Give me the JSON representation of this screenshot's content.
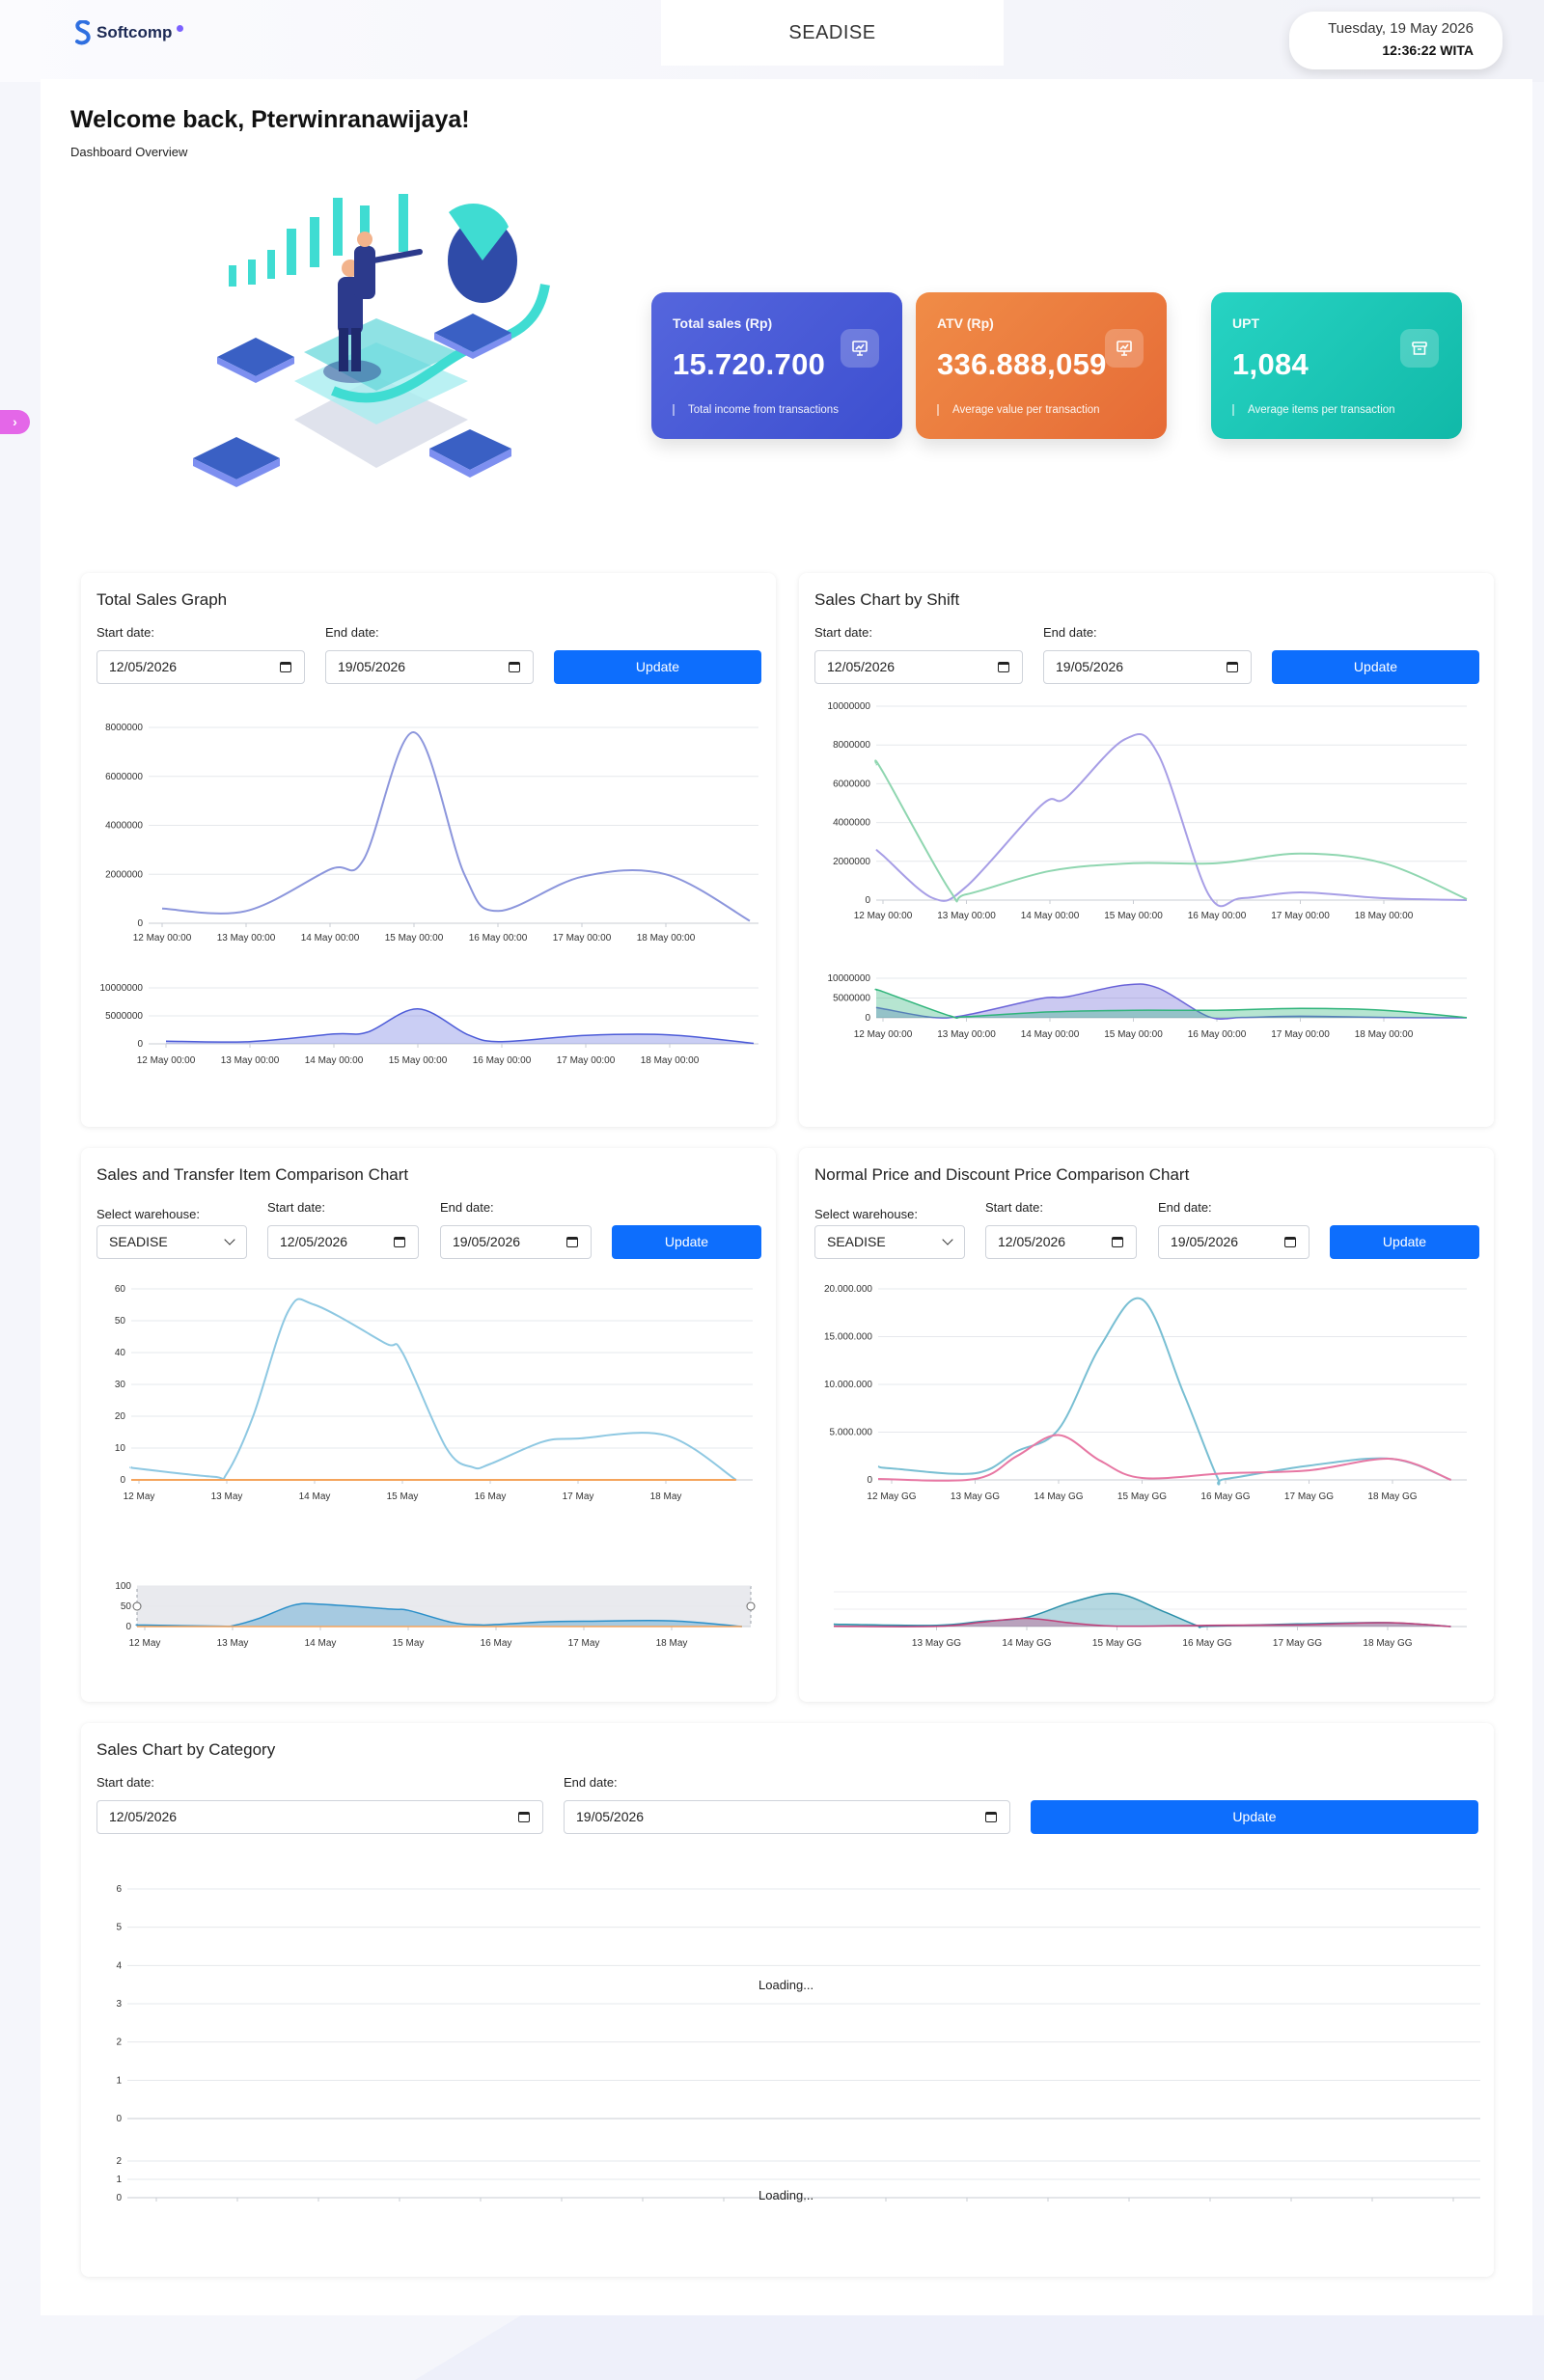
{
  "brand": {
    "name": "Softcomp"
  },
  "header": {
    "store": "SEADISE",
    "date": "Tuesday, 19 May 2026",
    "time": "12:36:22 WITA"
  },
  "welcome": {
    "title": "Welcome back, Pterwinranawijaya!",
    "subtitle": "Dashboard Overview"
  },
  "stats": [
    {
      "label": "Total sales (Rp)",
      "value": "15.720.700",
      "sub": "Total income from transactions",
      "icon": "presentation-chart-icon",
      "color": "#4a5ad8"
    },
    {
      "label": "ATV (Rp)",
      "value": "336.888,059",
      "sub": "Average value per transaction",
      "icon": "presentation-chart-icon",
      "color": "#ec7a3d"
    },
    {
      "label": "UPT",
      "value": "1,084",
      "sub": "Average items per transaction",
      "icon": "archive-box-icon",
      "color": "#1cc6b5"
    }
  ],
  "labels": {
    "start": "Start date:",
    "end": "End date:",
    "warehouse": "Select warehouse:",
    "update": "Update"
  },
  "cards": {
    "total_sales": {
      "title": "Total Sales Graph",
      "start": "12/05/2026",
      "end": "19/05/2026"
    },
    "shift": {
      "title": "Sales Chart by Shift",
      "start": "12/05/2026",
      "end": "19/05/2026"
    },
    "transfer": {
      "title": "Sales and Transfer Item Comparison Chart",
      "warehouse": "SEADISE",
      "start": "12/05/2026",
      "end": "19/05/2026"
    },
    "price": {
      "title": "Normal Price and Discount Price Comparison Chart",
      "warehouse": "SEADISE",
      "start": "12/05/2026",
      "end": "19/05/2026"
    },
    "category": {
      "title": "Sales Chart by Category",
      "start": "12/05/2026",
      "end": "19/05/2026",
      "loading": "Loading..."
    }
  },
  "chart_data": [
    {
      "type": "line",
      "id": "total",
      "x": [
        "12 May 00:00",
        "13 May 00:00",
        "14 May 00:00",
        "15 May 00:00",
        "16 May 00:00",
        "17 May 00:00",
        "18 May 00:00"
      ],
      "y_ticks": [
        "0",
        "2000000",
        "4000000",
        "6000000",
        "8000000"
      ],
      "ylim": [
        0,
        8000000
      ],
      "series": [
        {
          "color": "#8c96dc",
          "points": [
            [
              0,
              600000
            ],
            [
              1,
              500000
            ],
            [
              2,
              2200000
            ],
            [
              2.4,
              2600000
            ],
            [
              3,
              7800000
            ],
            [
              3.6,
              2000000
            ],
            [
              4,
              500000
            ],
            [
              5,
              1900000
            ],
            [
              6,
              2000000
            ],
            [
              7,
              100000
            ]
          ]
        }
      ],
      "navigator": {
        "y_ticks": [
          "0",
          "5000000",
          "10000000"
        ],
        "ylim": [
          0,
          10000000
        ],
        "color": "#4c5bd8",
        "fill": "#6672e0"
      }
    },
    {
      "type": "line",
      "id": "shift",
      "x": [
        "12 May 00:00",
        "13 May 00:00",
        "14 May 00:00",
        "15 May 00:00",
        "16 May 00:00",
        "17 May 00:00",
        "18 May 00:00"
      ],
      "y_ticks": [
        "0",
        "2000000",
        "4000000",
        "6000000",
        "8000000",
        "10000000"
      ],
      "ylim": [
        0,
        10000000
      ],
      "series": [
        {
          "color": "#a79ee6",
          "points": [
            [
              -0.2,
              2600000
            ],
            [
              0,
              2300000
            ],
            [
              0.6,
              100000
            ],
            [
              1,
              700000
            ],
            [
              1.9,
              4900000
            ],
            [
              2.2,
              5300000
            ],
            [
              2.9,
              8300000
            ],
            [
              3.3,
              7500000
            ],
            [
              3.9,
              300000
            ],
            [
              4.3,
              100000
            ],
            [
              5,
              400000
            ],
            [
              6,
              100000
            ],
            [
              7,
              0
            ]
          ]
        },
        {
          "color": "#8fd6b0",
          "points": [
            [
              -0.2,
              7000000
            ],
            [
              0,
              6600000
            ],
            [
              0.8,
              500000
            ],
            [
              1,
              300000
            ],
            [
              2,
              1500000
            ],
            [
              3,
              1900000
            ],
            [
              4,
              1900000
            ],
            [
              5,
              2400000
            ],
            [
              6,
              1900000
            ],
            [
              7,
              50000
            ]
          ]
        }
      ],
      "navigator": {
        "y_ticks": [
          "0",
          "5000000",
          "10000000"
        ],
        "ylim": [
          0,
          10000000
        ],
        "colors": [
          "#2fb47a",
          "#6a63d8"
        ]
      }
    },
    {
      "type": "line",
      "id": "transfer",
      "x": [
        "12 May",
        "13 May",
        "14 May",
        "15 May",
        "16 May",
        "17 May",
        "18 May"
      ],
      "y_ticks": [
        "0",
        "10",
        "20",
        "30",
        "40",
        "50",
        "60"
      ],
      "ylim": [
        0,
        60
      ],
      "series": [
        {
          "color": "#8ec8e2",
          "points": [
            [
              -0.2,
              4
            ],
            [
              0,
              3.5
            ],
            [
              0.85,
              1
            ],
            [
              1,
              2
            ],
            [
              1.3,
              20
            ],
            [
              1.7,
              53
            ],
            [
              2,
              55
            ],
            [
              2.8,
              43
            ],
            [
              3,
              40
            ],
            [
              3.5,
              10
            ],
            [
              3.8,
              4
            ],
            [
              4,
              5
            ],
            [
              4.6,
              12
            ],
            [
              5,
              13
            ],
            [
              6,
              14
            ],
            [
              6.8,
              0
            ]
          ]
        },
        {
          "color": "#f5a45c",
          "points": [
            [
              -0.2,
              0
            ],
            [
              6.8,
              0
            ]
          ]
        }
      ],
      "navigator": {
        "y_ticks": [
          "0",
          "50",
          "100"
        ],
        "ylim": [
          0,
          100
        ],
        "color": "#2a8fc9"
      }
    },
    {
      "type": "line",
      "id": "price",
      "x": [
        "12 May GG",
        "13 May GG",
        "14 May GG",
        "15 May GG",
        "16 May GG",
        "17 May GG",
        "18 May GG"
      ],
      "y_ticks": [
        "0",
        "5.000.000",
        "10.000.000",
        "15.000.000",
        "20.000.000"
      ],
      "ylim": [
        0,
        20000000
      ],
      "series": [
        {
          "color": "#79bfd3",
          "points": [
            [
              -0.2,
              1400000
            ],
            [
              0,
              1200000
            ],
            [
              1,
              700000
            ],
            [
              1.5,
              3000000
            ],
            [
              2,
              5300000
            ],
            [
              2.5,
              14000000
            ],
            [
              3,
              18900000
            ],
            [
              3.5,
              9000000
            ],
            [
              3.9,
              300000
            ],
            [
              4,
              100000
            ],
            [
              5,
              1500000
            ],
            [
              6,
              2200000
            ],
            [
              6.7,
              0
            ]
          ]
        },
        {
          "color": "#e777a3",
          "points": [
            [
              -0.2,
              100000
            ],
            [
              1,
              100000
            ],
            [
              1.5,
              2500000
            ],
            [
              2,
              4700000
            ],
            [
              2.5,
              2000000
            ],
            [
              3,
              200000
            ],
            [
              4,
              700000
            ],
            [
              5,
              1000000
            ],
            [
              6,
              2200000
            ],
            [
              6.7,
              0
            ]
          ]
        }
      ],
      "navigator": {
        "x_ticks": [
          "13 May GG",
          "14 May GG",
          "15 May GG",
          "16 May GG",
          "17 May GG",
          "18 May GG"
        ],
        "colors": [
          "#2a8fa9",
          "#c0407a"
        ]
      }
    },
    {
      "type": "line",
      "id": "category",
      "y_ticks": [
        "0",
        "1",
        "2",
        "3",
        "4",
        "5",
        "6"
      ],
      "ylim": [
        0,
        6
      ],
      "series": [],
      "navigator": {
        "y_ticks": [
          "0",
          "1",
          "2"
        ],
        "ylim": [
          0,
          2
        ]
      }
    }
  ]
}
